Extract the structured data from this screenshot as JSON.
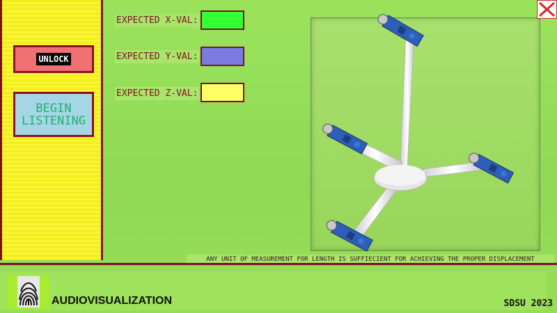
{
  "sidebar": {
    "unlock_label": "UNLOCK",
    "listen_label": "BEGIN\nLISTENING"
  },
  "expected": [
    {
      "label": "EXPECTED X-VAL:",
      "color": "#33ff33"
    },
    {
      "label": "EXPECTED Y-VAL:",
      "color": "#7b7be0"
    },
    {
      "label": "EXPECTED Z-VAL:",
      "color": "#ffff66"
    }
  ],
  "note": "ANY UNIT OF MEASUREMENT FOR LENGTH IS SUFFIECIENT FOR ACHIEVING THE PROPER DISPLACEMENT",
  "footer": {
    "brand": "AUDIOVISUALIZATION",
    "year": "SDSU 2023"
  },
  "colors": {
    "accent_border": "#7d1020",
    "background": "#96dd56"
  },
  "icons": {
    "close": "close-icon",
    "logo": "fingerprint-logo"
  }
}
